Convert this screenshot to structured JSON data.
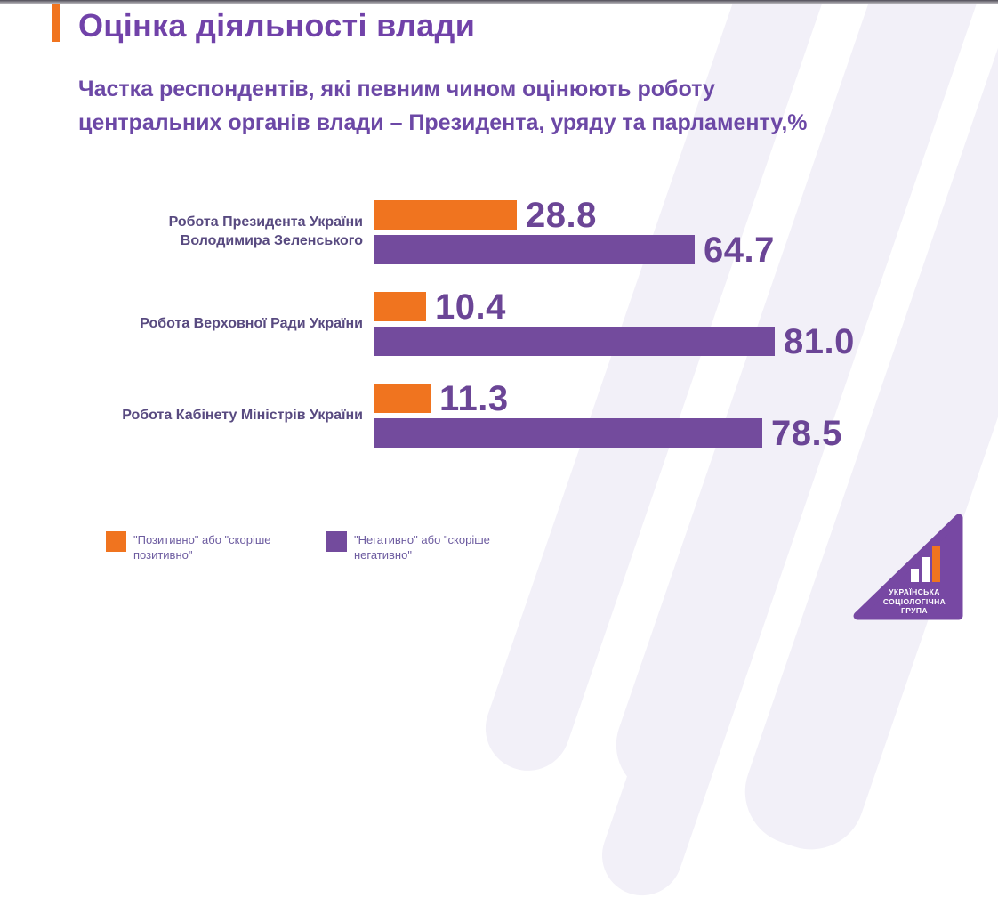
{
  "colors": {
    "positive": "#f0741f",
    "negative": "#734b9d",
    "title": "#7142a9",
    "watermark": "#f2f0f8",
    "logo_triangle": "#7748a3"
  },
  "header": {
    "title": "Оцінка діяльності влади",
    "subtitle": "Частка респондентів, які певним чином оцінюють роботу\nцентральних органів влади – Президента, уряду та парламенту,%"
  },
  "chart_data": {
    "type": "bar",
    "orientation": "horizontal",
    "unit": "%",
    "xlim": [
      0,
      100
    ],
    "grid": false,
    "legend_position": "bottom",
    "categories": [
      "Робота Президента України\nВолодимира Зеленського",
      "Робота Верховної Ради України",
      "Робота Кабінету Міністрів України"
    ],
    "series": [
      {
        "name": "\"Позитивно\" або \"скоріше\nпозитивно\"",
        "color": "#f0741f",
        "values": [
          28.8,
          10.4,
          11.3
        ]
      },
      {
        "name": "\"Негативно\" або \"скоріше\nнегативно\"",
        "color": "#734b9d",
        "values": [
          64.7,
          81.0,
          78.5
        ]
      }
    ],
    "value_labels": [
      [
        "28.8",
        "64.7"
      ],
      [
        "10.4",
        "81.0"
      ],
      [
        "11.3",
        "78.5"
      ]
    ]
  },
  "logo": {
    "text": "УКРАЇНСЬКА\nСОЦІОЛОГІЧНА\nГРУПА"
  }
}
